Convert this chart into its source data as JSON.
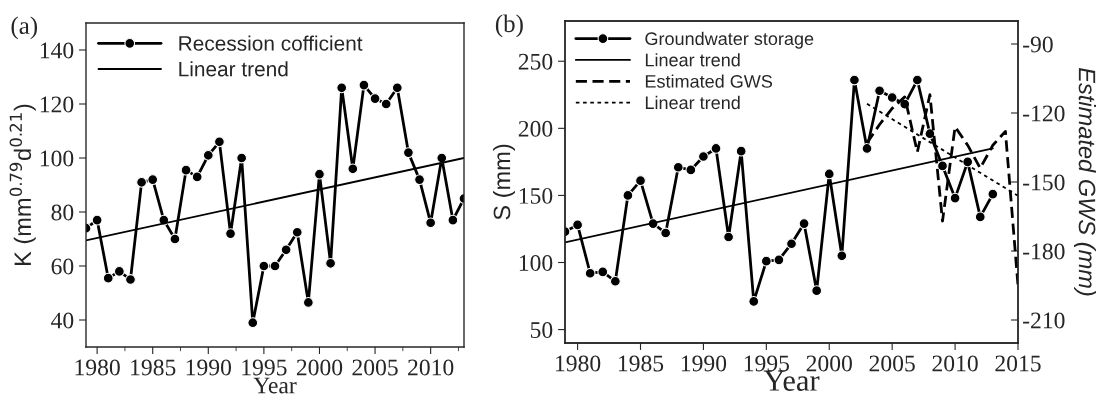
{
  "chart_data": [
    {
      "type": "line",
      "xlabel": "Year",
      "ylabel": "K (mm$^{0.79}$d$^{0.21}$)",
      "annotations": [
        "(a)"
      ],
      "xlim": [
        1979,
        2013
      ],
      "xticks": [
        1980,
        1985,
        1990,
        1995,
        2000,
        2005,
        2010
      ],
      "ylim": [
        30,
        150
      ],
      "yticks": [
        40,
        60,
        80,
        100,
        120,
        140
      ],
      "grid": false,
      "legend": "top left",
      "series": [
        {
          "name": "Recession cofficient",
          "color": "#000000",
          "marker": "circle",
          "line_style": "solid",
          "x": [
            1979,
            1980,
            1981,
            1982,
            1983,
            1984,
            1985,
            1986,
            1987,
            1988,
            1989,
            1990,
            1991,
            1992,
            1993,
            1994,
            1995,
            1996,
            1997,
            1998,
            1999,
            2000,
            2001,
            2002,
            2003,
            2004,
            2005,
            2006,
            2007,
            2008,
            2009,
            2010,
            2011,
            2012,
            2013
          ],
          "values": [
            74,
            77,
            55.5,
            58,
            55,
            91,
            92,
            77,
            70,
            95.5,
            93,
            101,
            106,
            72,
            100,
            39,
            60,
            60,
            66,
            72.5,
            46.5,
            94,
            61,
            126,
            96,
            127,
            122,
            120,
            126,
            102,
            92,
            76,
            100,
            77,
            85
          ]
        },
        {
          "name": "Linear trend",
          "color": "#000000",
          "marker": "none",
          "line_style": "solid",
          "x": [
            1979,
            2013
          ],
          "values": [
            69.5,
            100
          ]
        }
      ]
    },
    {
      "type": "line",
      "xlabel": "Year",
      "ylabel": "S (mm)",
      "y2label": "Estimated GWS (mm)",
      "annotations": [
        "(b)"
      ],
      "xlim": [
        1979,
        2015
      ],
      "xticks": [
        1980,
        1985,
        1990,
        1995,
        2000,
        2005,
        2010,
        2015
      ],
      "ylim": [
        40,
        280
      ],
      "yticks": [
        50,
        100,
        150,
        200,
        250
      ],
      "y2lim": [
        -220,
        -80
      ],
      "y2ticks": [
        {
          "value": -90,
          "label": "-90"
        },
        {
          "value": -120,
          "label": "-120"
        },
        {
          "value": -150,
          "label": "-150"
        },
        {
          "value": -180,
          "label": "-180"
        },
        {
          "value": -210,
          "label": "-210"
        }
      ],
      "grid": false,
      "legend": "top left",
      "series": [
        {
          "name": "Groundwater storage",
          "color": "#000000",
          "marker": "circle",
          "line_style": "solid",
          "x": [
            1979,
            1980,
            1981,
            1982,
            1983,
            1984,
            1985,
            1986,
            1987,
            1988,
            1989,
            1990,
            1991,
            1992,
            1993,
            1994,
            1995,
            1996,
            1997,
            1998,
            1999,
            2000,
            2001,
            2002,
            2003,
            2004,
            2005,
            2006,
            2007,
            2008,
            2009,
            2010,
            2011,
            2012,
            2013
          ],
          "values": [
            123,
            128,
            92,
            93,
            86,
            150,
            161,
            129,
            122,
            171,
            169,
            179,
            185,
            119,
            183,
            71,
            101,
            102,
            114,
            129,
            79,
            166,
            105,
            236,
            185,
            228,
            223,
            218,
            236,
            196,
            172,
            148,
            175,
            134,
            151
          ]
        },
        {
          "name": "Linear trend",
          "color": "#000000",
          "marker": "none",
          "line_style": "solid",
          "x": [
            1979,
            2013
          ],
          "values": [
            115,
            185
          ]
        },
        {
          "name": "Estimated GWS",
          "color": "#000000",
          "marker": "none",
          "line_style": "dashed",
          "axis": "y2",
          "x": [
            2003,
            2004,
            2005,
            2006,
            2007,
            2008,
            2009,
            2010,
            2011,
            2012,
            2013,
            2014,
            2015
          ],
          "values": [
            -133,
            -125,
            -118,
            -113,
            -137,
            -112,
            -167,
            -126,
            -134,
            -144,
            -134,
            -128,
            -195
          ]
        },
        {
          "name": "Linear trend",
          "color": "#000000",
          "marker": "none",
          "line_style": "dotted",
          "axis": "y2",
          "x": [
            2003,
            2015
          ],
          "values": [
            -116,
            -156
          ]
        }
      ]
    }
  ]
}
